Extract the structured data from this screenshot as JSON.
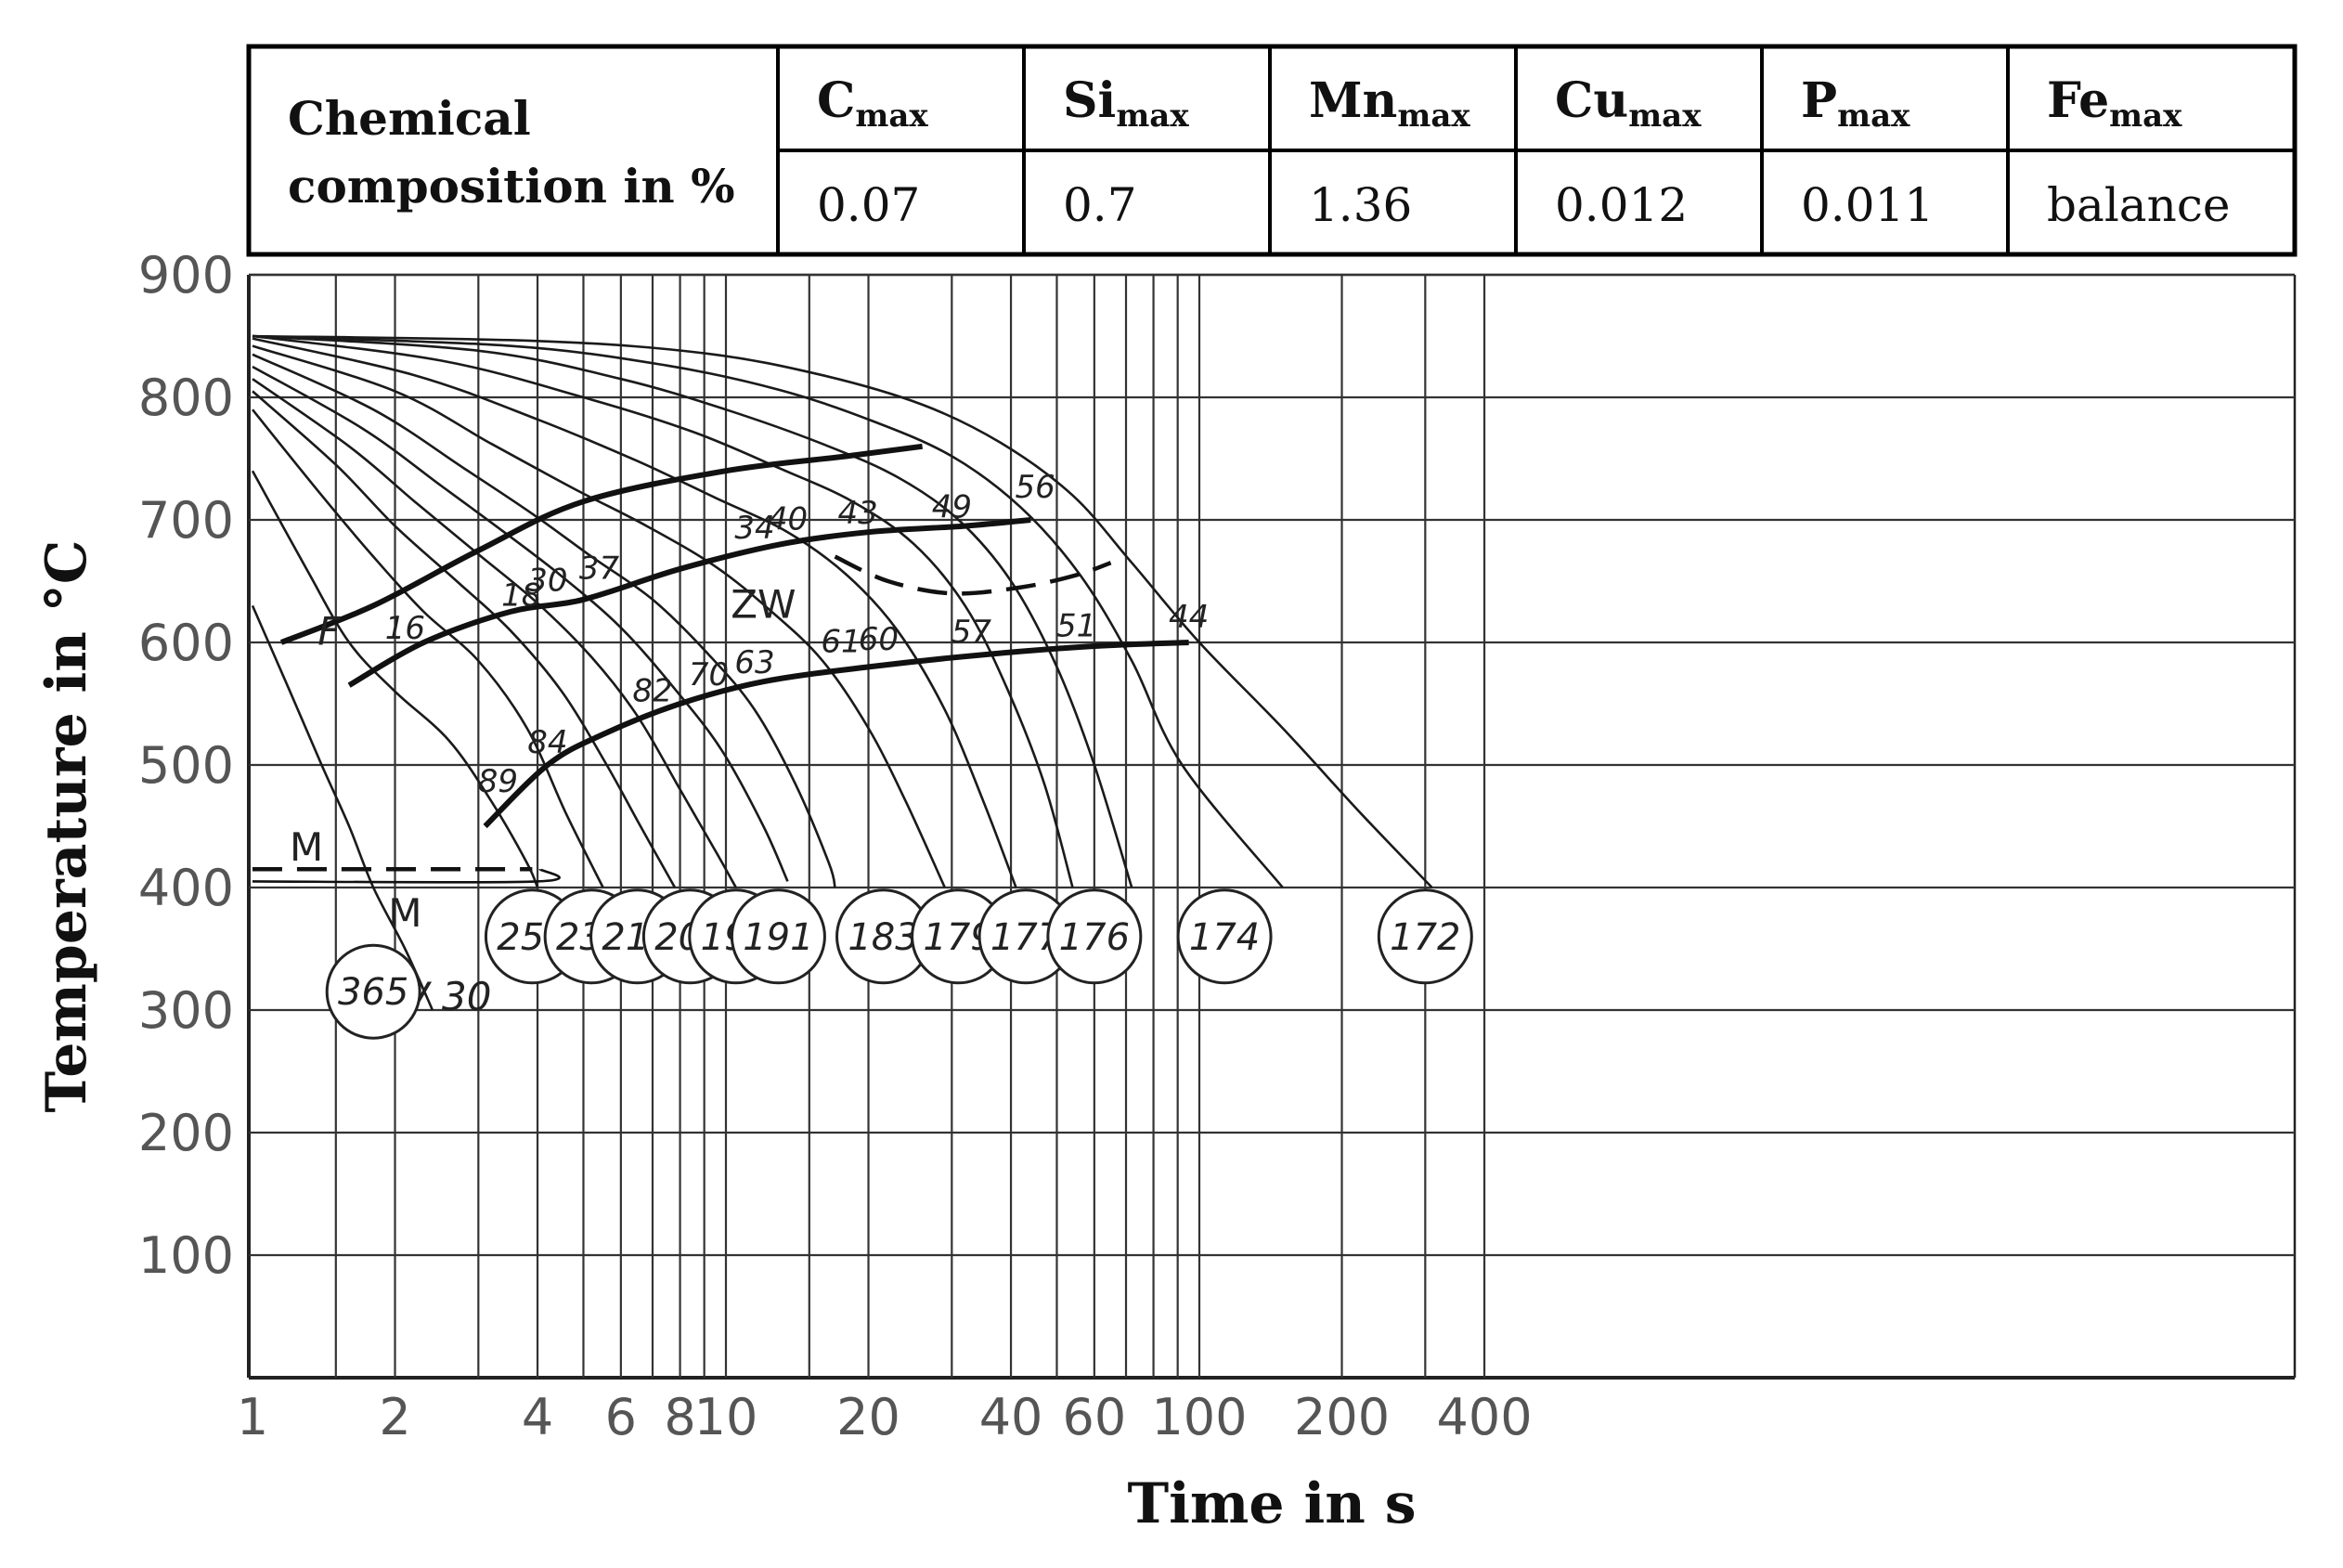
{
  "composition_table": {
    "row_label_line1": "Chemical",
    "row_label_line2": "composition in %",
    "columns": [
      {
        "element": "C",
        "sub": "max",
        "value": "0.07"
      },
      {
        "element": "Si",
        "sub": "max",
        "value": "0.7"
      },
      {
        "element": "Mn",
        "sub": "max",
        "value": "1.36"
      },
      {
        "element": "Cu",
        "sub": "max",
        "value": "0.012"
      },
      {
        "element": "P",
        "sub": "max",
        "value": "0.011"
      },
      {
        "element": "Fe",
        "sub": "max",
        "value": "balance"
      }
    ]
  },
  "chart_data": {
    "type": "line",
    "xlabel": "Time in s",
    "ylabel": "Temperature in °C",
    "xscale": "log",
    "xlim": [
      1,
      500
    ],
    "ylim": [
      0,
      900
    ],
    "grid": true,
    "x_ticks": [
      {
        "v": 1,
        "label": "1"
      },
      {
        "v": 2,
        "label": "2"
      },
      {
        "v": 4,
        "label": "4"
      },
      {
        "v": 6,
        "label": "6"
      },
      {
        "v": 8,
        "label": "8"
      },
      {
        "v": 10,
        "label": "10"
      },
      {
        "v": 20,
        "label": "20"
      },
      {
        "v": 40,
        "label": "40"
      },
      {
        "v": 60,
        "label": "60"
      },
      {
        "v": 100,
        "label": "100"
      },
      {
        "v": 200,
        "label": "200"
      },
      {
        "v": 400,
        "label": "400"
      }
    ],
    "x_gridlines": [
      1.5,
      2,
      3,
      4,
      5,
      6,
      7,
      8,
      9,
      10,
      15,
      20,
      30,
      40,
      50,
      60,
      70,
      80,
      90,
      100,
      200,
      300,
      400
    ],
    "y_ticks": [
      100,
      200,
      300,
      400,
      500,
      600,
      700,
      800,
      900
    ],
    "cooling_curves": [
      {
        "name": "365",
        "points": [
          [
            1,
            630
          ],
          [
            1.2,
            560
          ],
          [
            1.4,
            500
          ],
          [
            1.6,
            450
          ],
          [
            1.8,
            400
          ],
          [
            2.1,
            350
          ],
          [
            2.4,
            300
          ]
        ]
      },
      {
        "name": "257",
        "points": [
          [
            1,
            740
          ],
          [
            1.3,
            660
          ],
          [
            1.6,
            600
          ],
          [
            2,
            560
          ],
          [
            2.6,
            520
          ],
          [
            3.2,
            470
          ],
          [
            3.8,
            420
          ],
          [
            4,
            400
          ]
        ]
      },
      {
        "name": "235",
        "points": [
          [
            1,
            790
          ],
          [
            1.4,
            720
          ],
          [
            1.8,
            670
          ],
          [
            2.3,
            625
          ],
          [
            3,
            585
          ],
          [
            3.8,
            530
          ],
          [
            4.6,
            460
          ],
          [
            5.5,
            400
          ]
        ]
      },
      {
        "name": "213",
        "points": [
          [
            1,
            805
          ],
          [
            1.5,
            745
          ],
          [
            2,
            695
          ],
          [
            2.7,
            650
          ],
          [
            3.5,
            610
          ],
          [
            4.5,
            560
          ],
          [
            5.6,
            500
          ],
          [
            6.6,
            450
          ],
          [
            7.8,
            400
          ]
        ]
      },
      {
        "name": "209",
        "points": [
          [
            1,
            815
          ],
          [
            1.6,
            760
          ],
          [
            2.2,
            715
          ],
          [
            3,
            672
          ],
          [
            4,
            632
          ],
          [
            5.2,
            588
          ],
          [
            6.5,
            540
          ],
          [
            8,
            480
          ],
          [
            9.5,
            430
          ],
          [
            10.5,
            400
          ]
        ]
      },
      {
        "name": "198",
        "points": [
          [
            1,
            825
          ],
          [
            1.7,
            775
          ],
          [
            2.5,
            728
          ],
          [
            3.4,
            690
          ],
          [
            4.5,
            654
          ],
          [
            6,
            612
          ],
          [
            7.8,
            562
          ],
          [
            9.8,
            512
          ],
          [
            12,
            450
          ],
          [
            13.5,
            405
          ]
        ]
      },
      {
        "name": "191",
        "points": [
          [
            1,
            835
          ],
          [
            1.8,
            790
          ],
          [
            2.8,
            742
          ],
          [
            3.9,
            705
          ],
          [
            5.2,
            670
          ],
          [
            7,
            635
          ],
          [
            9.2,
            590
          ],
          [
            11.5,
            545
          ],
          [
            14,
            485
          ],
          [
            16.5,
            420
          ],
          [
            17,
            400
          ]
        ]
      },
      {
        "name": "183",
        "points": [
          [
            1,
            842
          ],
          [
            2,
            805
          ],
          [
            3.2,
            762
          ],
          [
            4.8,
            725
          ],
          [
            6.8,
            695
          ],
          [
            9.5,
            662
          ],
          [
            12.5,
            625
          ],
          [
            16,
            585
          ],
          [
            20,
            530
          ],
          [
            24,
            470
          ],
          [
            29,
            400
          ]
        ]
      },
      {
        "name": "179",
        "points": [
          [
            1,
            848
          ],
          [
            2.2,
            818
          ],
          [
            4,
            782
          ],
          [
            6.5,
            748
          ],
          [
            9.5,
            718
          ],
          [
            13.5,
            690
          ],
          [
            18,
            655
          ],
          [
            23,
            610
          ],
          [
            29,
            545
          ],
          [
            35,
            470
          ],
          [
            41,
            400
          ]
        ]
      },
      {
        "name": "177",
        "points": [
          [
            1,
            850
          ],
          [
            2.5,
            830
          ],
          [
            5,
            800
          ],
          [
            8.5,
            772
          ],
          [
            13,
            742
          ],
          [
            18.5,
            715
          ],
          [
            25,
            680
          ],
          [
            32,
            630
          ],
          [
            39,
            565
          ],
          [
            47,
            485
          ],
          [
            54,
            400
          ]
        ]
      },
      {
        "name": "176",
        "points": [
          [
            1,
            850
          ],
          [
            3,
            838
          ],
          [
            6,
            815
          ],
          [
            10,
            790
          ],
          [
            16,
            762
          ],
          [
            23,
            735
          ],
          [
            31,
            700
          ],
          [
            40,
            650
          ],
          [
            50,
            580
          ],
          [
            60,
            500
          ],
          [
            72,
            400
          ]
        ]
      },
      {
        "name": "174",
        "points": [
          [
            1,
            850
          ],
          [
            3.5,
            842
          ],
          [
            7.5,
            826
          ],
          [
            13,
            806
          ],
          [
            20,
            782
          ],
          [
            30,
            752
          ],
          [
            42,
            710
          ],
          [
            56,
            655
          ],
          [
            72,
            585
          ],
          [
            92,
            500
          ],
          [
            150,
            400
          ]
        ]
      },
      {
        "name": "172",
        "points": [
          [
            1,
            850
          ],
          [
            4,
            846
          ],
          [
            9,
            836
          ],
          [
            16,
            818
          ],
          [
            26,
            794
          ],
          [
            38,
            763
          ],
          [
            54,
            720
          ],
          [
            72,
            665
          ],
          [
            100,
            600
          ],
          [
            150,
            530
          ],
          [
            220,
            460
          ],
          [
            310,
            400
          ]
        ]
      }
    ],
    "transformation_lines": [
      {
        "name": "ferrite-start",
        "style": "bold",
        "points": [
          [
            1.15,
            600
          ],
          [
            1.8,
            630
          ],
          [
            3,
            675
          ],
          [
            5,
            715
          ],
          [
            10,
            740
          ],
          [
            18,
            752
          ],
          [
            26,
            760
          ]
        ]
      },
      {
        "name": "pearlite-start",
        "style": "bold",
        "points": [
          [
            1.6,
            565
          ],
          [
            2.3,
            600
          ],
          [
            3.5,
            625
          ],
          [
            5,
            635
          ],
          [
            8,
            660
          ],
          [
            13,
            680
          ],
          [
            20,
            690
          ],
          [
            32,
            695
          ],
          [
            44,
            700
          ]
        ]
      },
      {
        "name": "bainite-start",
        "style": "bold",
        "points": [
          [
            3.1,
            450
          ],
          [
            4.2,
            500
          ],
          [
            5.5,
            525
          ],
          [
            8,
            550
          ],
          [
            12,
            568
          ],
          [
            20,
            580
          ],
          [
            35,
            590
          ],
          [
            60,
            597
          ],
          [
            95,
            600
          ]
        ]
      },
      {
        "name": "dashed-region",
        "style": "dashed",
        "points": [
          [
            17,
            670
          ],
          [
            22,
            650
          ],
          [
            30,
            640
          ],
          [
            42,
            645
          ],
          [
            55,
            655
          ],
          [
            65,
            665
          ]
        ]
      },
      {
        "name": "Ms",
        "style": "dashed",
        "points": [
          [
            1,
            415
          ],
          [
            3.9,
            415
          ]
        ]
      },
      {
        "name": "martensite-finish",
        "style": "solid",
        "points": [
          [
            1,
            405
          ],
          [
            4,
            405
          ],
          [
            4.05,
            415
          ]
        ]
      }
    ],
    "annotations": [
      {
        "text": "F",
        "x": 1.45,
        "y": 598
      },
      {
        "text": "16",
        "x": 2.1,
        "y": 603
      },
      {
        "text": "18",
        "x": 3.7,
        "y": 630
      },
      {
        "text": "30",
        "x": 4.2,
        "y": 642
      },
      {
        "text": "37",
        "x": 5.4,
        "y": 652
      },
      {
        "text": "34",
        "x": 11.5,
        "y": 685
      },
      {
        "text": "40",
        "x": 13.5,
        "y": 692
      },
      {
        "text": "43",
        "x": 19,
        "y": 697
      },
      {
        "text": "49",
        "x": 30,
        "y": 702
      },
      {
        "text": "56",
        "x": 45,
        "y": 718
      },
      {
        "text": "ZW",
        "x": 12,
        "y": 620
      },
      {
        "text": "89",
        "x": 3.3,
        "y": 478
      },
      {
        "text": "84",
        "x": 4.2,
        "y": 510
      },
      {
        "text": "82",
        "x": 7,
        "y": 552
      },
      {
        "text": "70",
        "x": 9.2,
        "y": 565
      },
      {
        "text": "63",
        "x": 11.5,
        "y": 575
      },
      {
        "text": "61",
        "x": 17.5,
        "y": 592
      },
      {
        "text": "60",
        "x": 21,
        "y": 594
      },
      {
        "text": "57",
        "x": 33,
        "y": 600
      },
      {
        "text": "51",
        "x": 55,
        "y": 605
      },
      {
        "text": "44",
        "x": 95,
        "y": 612
      },
      {
        "text": "M",
        "x": 1.3,
        "y": 422
      },
      {
        "text": "M",
        "x": 2.1,
        "y": 368
      },
      {
        "text": "HV 30",
        "x": 2.4,
        "y": 300
      }
    ],
    "hardness_circles": [
      {
        "label": "365",
        "x": 1.8,
        "y": 315
      },
      {
        "label": "257",
        "x": 3.9,
        "y": 360
      },
      {
        "label": "235",
        "x": 5.2,
        "y": 360
      },
      {
        "label": "213",
        "x": 6.5,
        "y": 360
      },
      {
        "label": "209",
        "x": 8.4,
        "y": 360
      },
      {
        "label": "198",
        "x": 10.5,
        "y": 360
      },
      {
        "label": "191",
        "x": 12.9,
        "y": 360
      },
      {
        "label": "183",
        "x": 21.5,
        "y": 360
      },
      {
        "label": "179",
        "x": 31,
        "y": 360
      },
      {
        "label": "177",
        "x": 43,
        "y": 360
      },
      {
        "label": "176",
        "x": 60,
        "y": 360
      },
      {
        "label": "174",
        "x": 113,
        "y": 360
      },
      {
        "label": "172",
        "x": 300,
        "y": 360
      }
    ]
  }
}
